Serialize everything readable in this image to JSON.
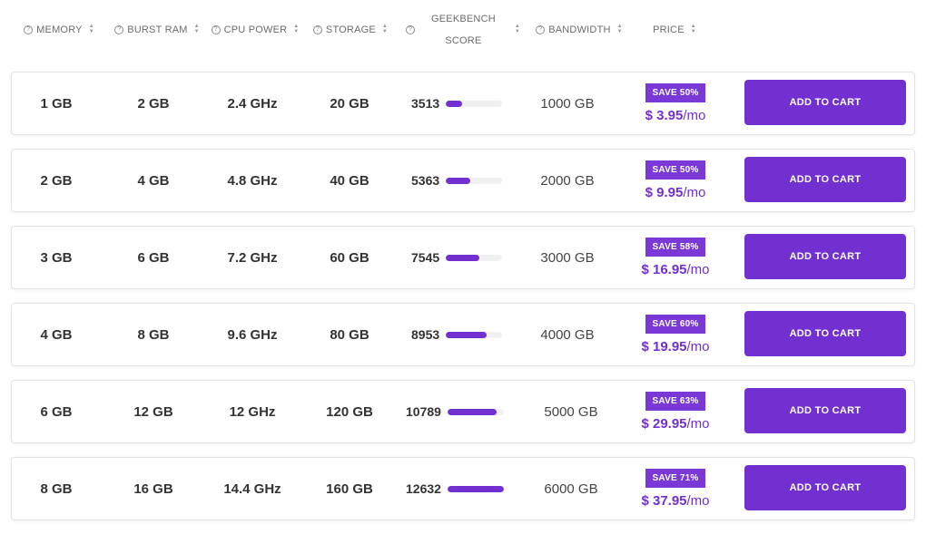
{
  "header": {
    "memory": "MEMORY",
    "burst_ram": "BURST RAM",
    "cpu_power": "CPU POWER",
    "storage": "STORAGE",
    "geekbench_line1": "GEEKBENCH",
    "geekbench_line2": "SCORE",
    "bandwidth": "BANDWIDTH",
    "price": "PRICE",
    "help_glyph": "?",
    "sort_up": "▲",
    "sort_down": "▼"
  },
  "colors": {
    "accent": "#7230d0",
    "save_badge": "#7a39d6"
  },
  "rows": [
    {
      "memory": "1 GB",
      "burst_ram": "2 GB",
      "cpu": "2.4 GHz",
      "storage": "20 GB",
      "geekbench": "3513",
      "geekbench_fill": 0.28,
      "bandwidth": "1000 GB",
      "save": "SAVE 50%",
      "price": "$ 3.95",
      "per": "/mo",
      "cart": "ADD TO CART"
    },
    {
      "memory": "2 GB",
      "burst_ram": "4 GB",
      "cpu": "4.8 GHz",
      "storage": "40 GB",
      "geekbench": "5363",
      "geekbench_fill": 0.43,
      "bandwidth": "2000 GB",
      "save": "SAVE 50%",
      "price": "$ 9.95",
      "per": "/mo",
      "cart": "ADD TO CART"
    },
    {
      "memory": "3 GB",
      "burst_ram": "6 GB",
      "cpu": "7.2 GHz",
      "storage": "60 GB",
      "geekbench": "7545",
      "geekbench_fill": 0.6,
      "bandwidth": "3000 GB",
      "save": "SAVE 58%",
      "price": "$ 16.95",
      "per": "/mo",
      "cart": "ADD TO CART"
    },
    {
      "memory": "4 GB",
      "burst_ram": "8 GB",
      "cpu": "9.6 GHz",
      "storage": "80 GB",
      "geekbench": "8953",
      "geekbench_fill": 0.72,
      "bandwidth": "4000 GB",
      "save": "SAVE 60%",
      "price": "$ 19.95",
      "per": "/mo",
      "cart": "ADD TO CART"
    },
    {
      "memory": "6 GB",
      "burst_ram": "12 GB",
      "cpu": "12 GHz",
      "storage": "120 GB",
      "geekbench": "10789",
      "geekbench_fill": 0.87,
      "bandwidth": "5000 GB",
      "save": "SAVE 63%",
      "price": "$ 29.95",
      "per": "/mo",
      "cart": "ADD TO CART"
    },
    {
      "memory": "8 GB",
      "burst_ram": "16 GB",
      "cpu": "14.4 GHz",
      "storage": "160 GB",
      "geekbench": "12632",
      "geekbench_fill": 1.0,
      "bandwidth": "6000 GB",
      "save": "SAVE 71%",
      "price": "$ 37.95",
      "per": "/mo",
      "cart": "ADD TO CART"
    }
  ]
}
